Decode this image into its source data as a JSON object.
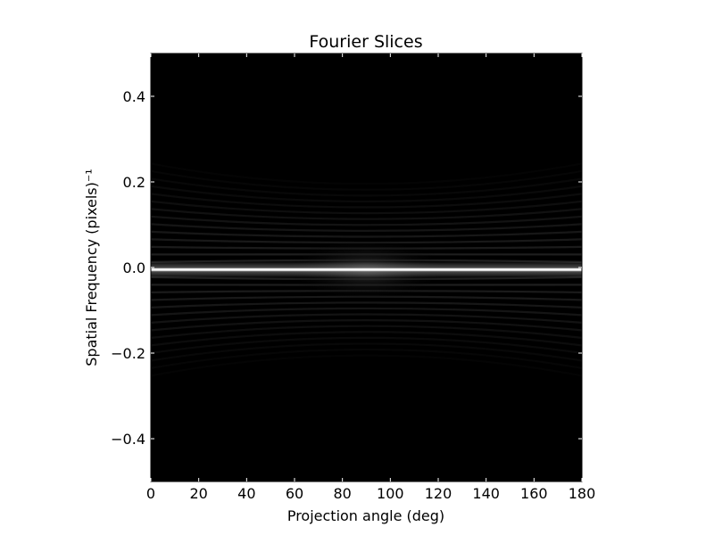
{
  "chart_data": {
    "type": "heatmap",
    "title": "Fourier Slices",
    "xlabel": "Projection angle (deg)",
    "ylabel": "Spatial Frequency (pixels)⁻¹",
    "xlim": [
      0,
      180
    ],
    "ylim": [
      -0.5,
      0.5
    ],
    "x_ticks": [
      0,
      20,
      40,
      60,
      80,
      100,
      120,
      140,
      160,
      180
    ],
    "x_tick_labels": [
      "0",
      "20",
      "40",
      "60",
      "80",
      "100",
      "120",
      "140",
      "160",
      "180"
    ],
    "y_ticks": [
      0.4,
      0.2,
      0.0,
      -0.2,
      -0.4
    ],
    "y_tick_labels": [
      "0.4",
      "0.2",
      "0.0",
      "−0.2",
      "−0.4"
    ],
    "colormap": "gray",
    "background_color": "#000000",
    "bright_line": {
      "y": -0.005,
      "description_value": "peak intensity concentrated near zero frequency across all angles"
    },
    "ripple_band": {
      "ymin": -0.18,
      "ymax": 0.18
    },
    "grid": false
  }
}
